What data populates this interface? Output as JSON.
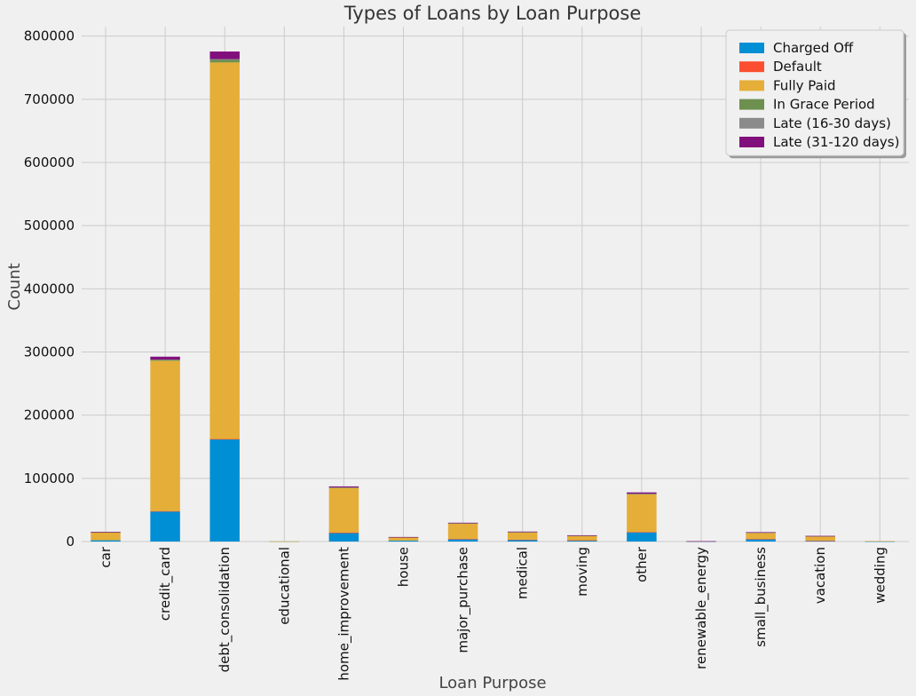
{
  "chart_data": {
    "type": "bar",
    "stacked": true,
    "title": "Types of Loans by Loan Purpose",
    "xlabel": "Loan Purpose",
    "ylabel": "Count",
    "ylim": [
      0,
      815000
    ],
    "yticks": [
      0,
      100000,
      200000,
      300000,
      400000,
      500000,
      600000,
      700000,
      800000
    ],
    "grid": true,
    "legend_position": "top-right",
    "categories": [
      "car",
      "credit_card",
      "debt_consolidation",
      "educational",
      "home_improvement",
      "house",
      "major_purchase",
      "medical",
      "moving",
      "other",
      "renewable_energy",
      "small_business",
      "vacation",
      "wedding"
    ],
    "series": [
      {
        "name": "Charged Off",
        "color": "#008fd5",
        "values": [
          2000,
          48000,
          162000,
          100,
          14000,
          1500,
          4000,
          3000,
          2000,
          15000,
          150,
          4000,
          1500,
          300
        ]
      },
      {
        "name": "Default",
        "color": "#fc4f30",
        "values": [
          0,
          100,
          300,
          0,
          50,
          0,
          20,
          20,
          10,
          50,
          0,
          20,
          10,
          0
        ]
      },
      {
        "name": "Fully Paid",
        "color": "#e5ae38",
        "values": [
          13000,
          238000,
          596000,
          200,
          71000,
          5500,
          25000,
          12000,
          7500,
          60000,
          450,
          10000,
          7000,
          600
        ]
      },
      {
        "name": "In Grace Period",
        "color": "#6d904f",
        "values": [
          100,
          1500,
          4000,
          0,
          500,
          50,
          200,
          200,
          100,
          500,
          0,
          200,
          100,
          0
        ]
      },
      {
        "name": "Late (16-30 days)",
        "color": "#8b8b8b",
        "values": [
          30,
          500,
          1300,
          0,
          200,
          20,
          50,
          50,
          30,
          200,
          0,
          50,
          20,
          0
        ]
      },
      {
        "name": "Late (31-120 days)",
        "color": "#810f7c",
        "values": [
          300,
          4500,
          12000,
          0,
          1500,
          100,
          500,
          500,
          300,
          2000,
          10,
          600,
          300,
          0
        ]
      }
    ]
  }
}
